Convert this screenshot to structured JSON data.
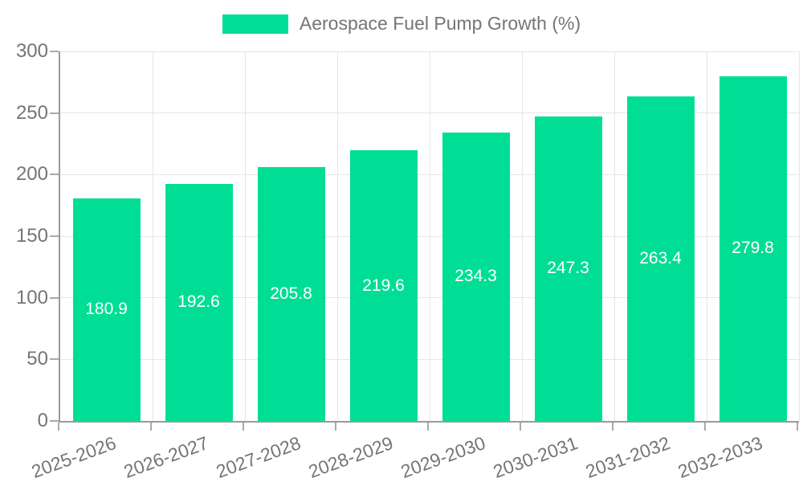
{
  "chart_data": {
    "type": "bar",
    "title": "Aerospace Fuel Pump Growth (%)",
    "categories": [
      "2025-2026",
      "2026-2027",
      "2027-2028",
      "2028-2029",
      "2029-2030",
      "2030-2031",
      "2031-2032",
      "2032-2033"
    ],
    "values": [
      180.9,
      192.6,
      205.8,
      219.6,
      234.3,
      247.3,
      263.4,
      279.8
    ],
    "xlabel": "",
    "ylabel": "",
    "ylim": [
      0,
      300
    ],
    "yticks": [
      0,
      50,
      100,
      150,
      200,
      250,
      300
    ],
    "grid": true,
    "legend_position": "top",
    "colors": {
      "bar": "#00DE96",
      "value_label": "#ffffff",
      "axis_text": "#757575",
      "axis_line": "#9a9a9a",
      "gridline": "#e6e6e6"
    }
  }
}
